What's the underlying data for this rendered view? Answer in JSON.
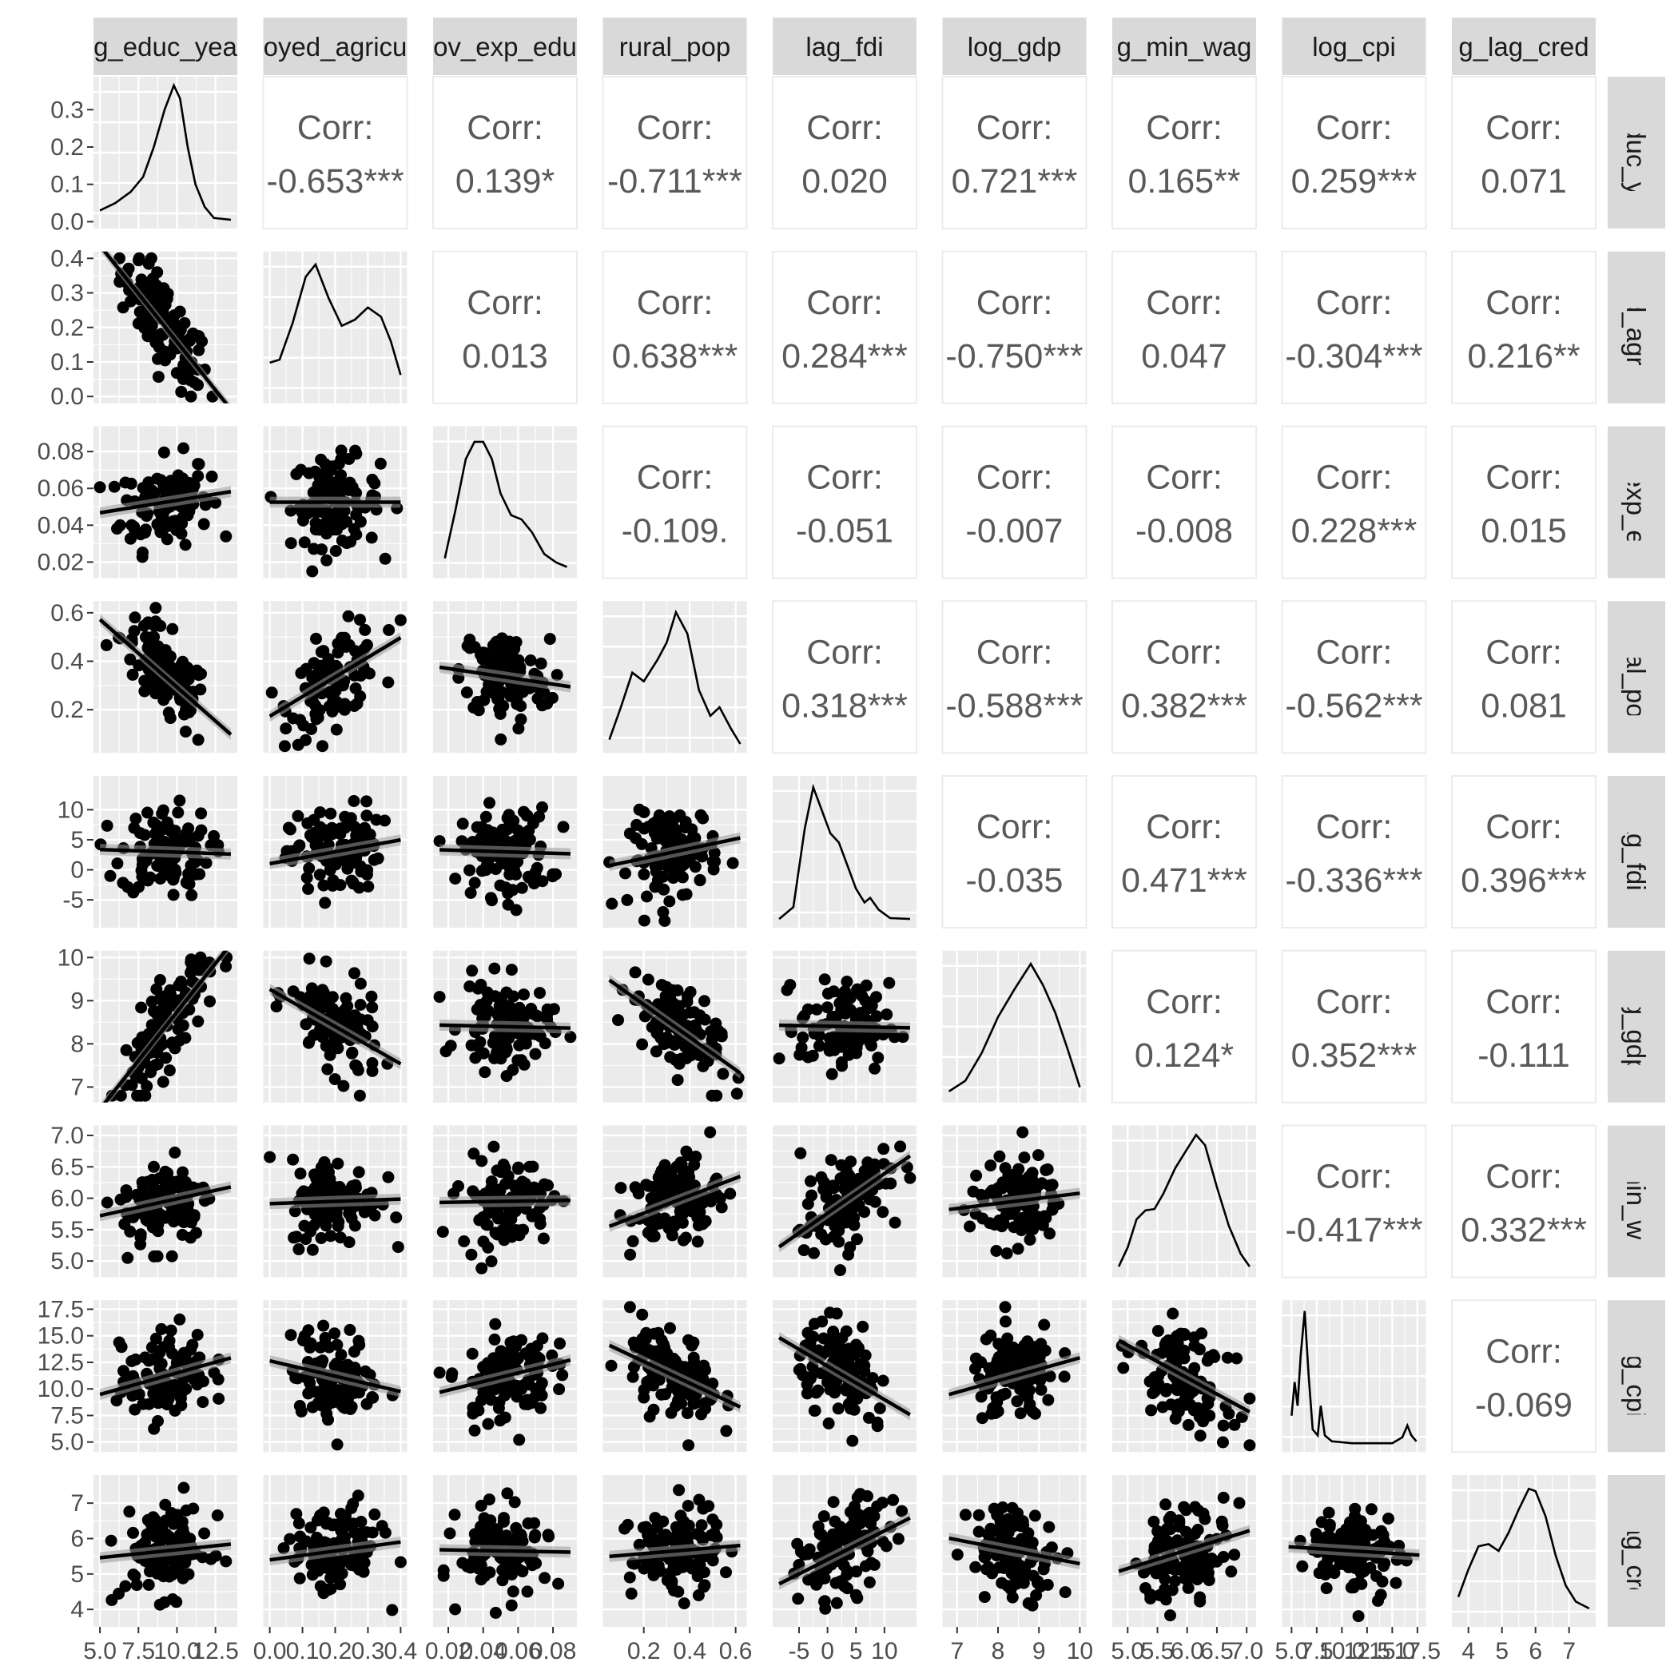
{
  "chart_data": {
    "type": "scatter-matrix",
    "variables": [
      "log_educ_years",
      "employed_agriculture",
      "gov_exp_education",
      "rural_pop",
      "lag_fdi",
      "log_gdp",
      "log_min_wage",
      "log_cpi",
      "log_lag_credit"
    ],
    "strip_labels": [
      "g_educ_yea",
      "oyed_agricu",
      "ov_exp_edu",
      "rural_pop",
      "lag_fdi",
      "log_gdp",
      "g_min_wag",
      "log_cpi",
      "g_lag_cred"
    ],
    "corr_label": "Corr:",
    "correlations": [
      {
        "row": 1,
        "col": 0,
        "value": "-0.653***"
      },
      {
        "row": 2,
        "col": 0,
        "value": "0.139*"
      },
      {
        "row": 2,
        "col": 1,
        "value": "0.013"
      },
      {
        "row": 3,
        "col": 0,
        "value": "-0.711***"
      },
      {
        "row": 3,
        "col": 1,
        "value": "0.638***"
      },
      {
        "row": 3,
        "col": 2,
        "value": "-0.109."
      },
      {
        "row": 4,
        "col": 0,
        "value": "0.020"
      },
      {
        "row": 4,
        "col": 1,
        "value": "0.284***"
      },
      {
        "row": 4,
        "col": 2,
        "value": "-0.051"
      },
      {
        "row": 4,
        "col": 3,
        "value": "0.318***"
      },
      {
        "row": 5,
        "col": 0,
        "value": "0.721***"
      },
      {
        "row": 5,
        "col": 1,
        "value": "-0.750***"
      },
      {
        "row": 5,
        "col": 2,
        "value": "-0.007"
      },
      {
        "row": 5,
        "col": 3,
        "value": "-0.588***"
      },
      {
        "row": 5,
        "col": 4,
        "value": "-0.035"
      },
      {
        "row": 6,
        "col": 0,
        "value": "0.165**"
      },
      {
        "row": 6,
        "col": 1,
        "value": "0.047"
      },
      {
        "row": 6,
        "col": 2,
        "value": "-0.008"
      },
      {
        "row": 6,
        "col": 3,
        "value": "0.382***"
      },
      {
        "row": 6,
        "col": 4,
        "value": "0.471***"
      },
      {
        "row": 6,
        "col": 5,
        "value": "0.124*"
      },
      {
        "row": 7,
        "col": 0,
        "value": "0.259***"
      },
      {
        "row": 7,
        "col": 1,
        "value": "-0.304***"
      },
      {
        "row": 7,
        "col": 2,
        "value": "0.228***"
      },
      {
        "row": 7,
        "col": 3,
        "value": "-0.562***"
      },
      {
        "row": 7,
        "col": 4,
        "value": "-0.336***"
      },
      {
        "row": 7,
        "col": 5,
        "value": "0.352***"
      },
      {
        "row": 7,
        "col": 6,
        "value": "-0.417***"
      },
      {
        "row": 8,
        "col": 0,
        "value": "0.071"
      },
      {
        "row": 8,
        "col": 1,
        "value": "0.216**"
      },
      {
        "row": 8,
        "col": 2,
        "value": "0.015"
      },
      {
        "row": 8,
        "col": 3,
        "value": "0.081"
      },
      {
        "row": 8,
        "col": 4,
        "value": "0.396***"
      },
      {
        "row": 8,
        "col": 5,
        "value": "-0.111"
      },
      {
        "row": 8,
        "col": 6,
        "value": "0.332***"
      },
      {
        "row": 8,
        "col": 7,
        "value": "-0.069"
      }
    ],
    "axes": [
      {
        "range": [
          5.0,
          13.5
        ],
        "ticks": [
          5.0,
          7.5,
          10.0,
          12.5
        ],
        "tick_labels": [
          "5.0",
          "7.5",
          "10.0",
          "12.5"
        ],
        "y_ticks": [
          0.0,
          0.1,
          0.2,
          0.3
        ],
        "y_tick_labels": [
          "0.0",
          "0.1",
          "0.2",
          "0.3"
        ],
        "density": {
          "ylim": [
            0,
            0.37
          ],
          "points": [
            [
              5.0,
              0.03
            ],
            [
              6.0,
              0.05
            ],
            [
              7.0,
              0.08
            ],
            [
              7.8,
              0.12
            ],
            [
              8.5,
              0.2
            ],
            [
              9.2,
              0.3
            ],
            [
              9.8,
              0.365
            ],
            [
              10.2,
              0.33
            ],
            [
              10.7,
              0.2
            ],
            [
              11.2,
              0.1
            ],
            [
              11.8,
              0.04
            ],
            [
              12.4,
              0.01
            ],
            [
              13.5,
              0.005
            ]
          ]
        }
      },
      {
        "range": [
          0.0,
          0.4
        ],
        "ticks": [
          0.0,
          0.1,
          0.2,
          0.3,
          0.4
        ],
        "tick_labels": [
          "0.0",
          "0.1",
          "0.2",
          "0.3",
          "0.4"
        ],
        "y_ticks": [
          0.0,
          0.1,
          0.2,
          0.3,
          0.4
        ],
        "y_tick_labels": [
          "0.0",
          "0.1",
          "0.2",
          "0.3",
          "0.4"
        ],
        "density": {
          "ylim": [
            0,
            4.5
          ],
          "points": [
            [
              0.0,
              1.1
            ],
            [
              0.03,
              1.2
            ],
            [
              0.07,
              2.4
            ],
            [
              0.11,
              3.9
            ],
            [
              0.14,
              4.3
            ],
            [
              0.18,
              3.2
            ],
            [
              0.22,
              2.3
            ],
            [
              0.26,
              2.5
            ],
            [
              0.3,
              2.9
            ],
            [
              0.34,
              2.6
            ],
            [
              0.37,
              1.8
            ],
            [
              0.4,
              0.7
            ]
          ]
        }
      },
      {
        "range": [
          0.015,
          0.09
        ],
        "ticks": [
          0.02,
          0.04,
          0.06,
          0.08
        ],
        "tick_labels": [
          "0.02",
          "0.04",
          "0.06",
          "0.08"
        ],
        "y_ticks": [
          0.02,
          0.04,
          0.06,
          0.08
        ],
        "y_tick_labels": [
          "0.02",
          "0.04",
          "0.06",
          "0.08"
        ],
        "density": {
          "ylim": [
            0,
            32
          ],
          "points": [
            [
              0.018,
              3
            ],
            [
              0.024,
              14
            ],
            [
              0.03,
              26
            ],
            [
              0.035,
              30
            ],
            [
              0.04,
              30
            ],
            [
              0.045,
              26
            ],
            [
              0.05,
              18
            ],
            [
              0.056,
              13
            ],
            [
              0.062,
              12
            ],
            [
              0.068,
              9
            ],
            [
              0.075,
              4
            ],
            [
              0.082,
              2
            ],
            [
              0.088,
              1
            ]
          ]
        }
      },
      {
        "range": [
          0.05,
          0.62
        ],
        "ticks": [
          0.2,
          0.4,
          0.6
        ],
        "tick_labels": [
          "0.2",
          "0.4",
          "0.6"
        ],
        "y_ticks": [
          0.2,
          0.4,
          0.6
        ],
        "y_tick_labels": [
          "0.2",
          "0.4",
          "0.6"
        ],
        "density": {
          "ylim": [
            0,
            3.2
          ],
          "points": [
            [
              0.05,
              0.15
            ],
            [
              0.1,
              0.9
            ],
            [
              0.15,
              1.7
            ],
            [
              0.2,
              1.5
            ],
            [
              0.26,
              2.0
            ],
            [
              0.3,
              2.4
            ],
            [
              0.34,
              3.1
            ],
            [
              0.39,
              2.6
            ],
            [
              0.44,
              1.3
            ],
            [
              0.49,
              0.7
            ],
            [
              0.53,
              0.9
            ],
            [
              0.58,
              0.4
            ],
            [
              0.62,
              0.05
            ]
          ]
        }
      },
      {
        "range": [
          -8.5,
          14.5
        ],
        "ticks": [
          -5,
          0,
          5,
          10
        ],
        "tick_labels": [
          "-5",
          "0",
          "5",
          "10"
        ],
        "y_ticks": [
          -5,
          0,
          5,
          10
        ],
        "y_tick_labels": [
          "-5",
          "0",
          "5",
          "10"
        ],
        "density": {
          "ylim": [
            0,
            0.15
          ],
          "points": [
            [
              -8.5,
              0.002
            ],
            [
              -6,
              0.015
            ],
            [
              -4,
              0.1
            ],
            [
              -2.5,
              0.145
            ],
            [
              -1,
              0.12
            ],
            [
              0.5,
              0.095
            ],
            [
              2,
              0.085
            ],
            [
              3.5,
              0.06
            ],
            [
              5,
              0.035
            ],
            [
              6.5,
              0.02
            ],
            [
              7.5,
              0.025
            ],
            [
              9,
              0.012
            ],
            [
              11,
              0.003
            ],
            [
              14.5,
              0.002
            ]
          ]
        }
      },
      {
        "range": [
          6.8,
          10.0
        ],
        "ticks": [
          7,
          8,
          9,
          10
        ],
        "tick_labels": [
          "7",
          "8",
          "9",
          "10"
        ],
        "y_ticks": [
          7,
          8,
          9,
          10
        ],
        "y_tick_labels": [
          "7",
          "8",
          "9",
          "10"
        ],
        "density": {
          "ylim": [
            0,
            0.65
          ],
          "points": [
            [
              6.8,
              0.02
            ],
            [
              7.2,
              0.07
            ],
            [
              7.6,
              0.2
            ],
            [
              8.0,
              0.37
            ],
            [
              8.4,
              0.5
            ],
            [
              8.8,
              0.62
            ],
            [
              9.1,
              0.52
            ],
            [
              9.4,
              0.39
            ],
            [
              9.7,
              0.22
            ],
            [
              10.0,
              0.04
            ]
          ]
        }
      },
      {
        "range": [
          4.85,
          7.05
        ],
        "ticks": [
          5.0,
          5.5,
          6.0,
          6.5,
          7.0
        ],
        "tick_labels": [
          "5.0",
          "5.5",
          "6.0",
          "6.5",
          "7.0"
        ],
        "y_ticks": [
          5.0,
          5.5,
          6.0,
          6.5,
          7.0
        ],
        "y_tick_labels": [
          "5.0",
          "5.5",
          "6.0",
          "6.5",
          "7.0"
        ],
        "density": {
          "ylim": [
            0,
            1.08
          ],
          "points": [
            [
              4.85,
              0.03
            ],
            [
              5.0,
              0.18
            ],
            [
              5.15,
              0.4
            ],
            [
              5.3,
              0.47
            ],
            [
              5.45,
              0.48
            ],
            [
              5.6,
              0.6
            ],
            [
              5.8,
              0.8
            ],
            [
              6.0,
              0.95
            ],
            [
              6.15,
              1.06
            ],
            [
              6.3,
              0.98
            ],
            [
              6.5,
              0.65
            ],
            [
              6.7,
              0.35
            ],
            [
              6.9,
              0.13
            ],
            [
              7.05,
              0.03
            ]
          ]
        }
      },
      {
        "range": [
          4.7,
          17.7
        ],
        "ticks": [
          5.0,
          7.5,
          10.0,
          12.5,
          15.0,
          17.5
        ],
        "tick_labels": [
          "5.0",
          "7.5",
          "10.0",
          "12.5",
          "15.0",
          "17.5"
        ],
        "y_ticks": [
          5.0,
          7.5,
          10.0,
          12.5,
          15.0,
          17.5
        ],
        "y_tick_labels": [
          "5.0",
          "7.5",
          "10.0",
          "12.5",
          "15.0",
          "17.5"
        ],
        "density": {
          "ylim": [
            0,
            0.7
          ],
          "points": [
            [
              5.0,
              0.15
            ],
            [
              5.3,
              0.32
            ],
            [
              5.6,
              0.2
            ],
            [
              5.9,
              0.45
            ],
            [
              6.3,
              0.68
            ],
            [
              6.7,
              0.35
            ],
            [
              7.1,
              0.08
            ],
            [
              7.6,
              0.05
            ],
            [
              7.9,
              0.2
            ],
            [
              8.3,
              0.05
            ],
            [
              9.0,
              0.02
            ],
            [
              11,
              0.01
            ],
            [
              15,
              0.01
            ],
            [
              16,
              0.04
            ],
            [
              16.5,
              0.1
            ],
            [
              16.9,
              0.05
            ],
            [
              17.4,
              0.02
            ]
          ]
        }
      },
      {
        "range": [
          3.7,
          7.6
        ],
        "ticks": [
          4,
          5,
          6,
          7
        ],
        "tick_labels": [
          "4",
          "5",
          "6",
          "7"
        ],
        "y_ticks": [
          4,
          5,
          6,
          7
        ],
        "y_tick_labels": [
          "4",
          "5",
          "6",
          "7"
        ],
        "density": {
          "ylim": [
            0,
            0.6
          ],
          "points": [
            [
              3.7,
              0.1
            ],
            [
              4.0,
              0.22
            ],
            [
              4.3,
              0.32
            ],
            [
              4.6,
              0.33
            ],
            [
              4.9,
              0.3
            ],
            [
              5.2,
              0.38
            ],
            [
              5.5,
              0.48
            ],
            [
              5.8,
              0.57
            ],
            [
              6.0,
              0.56
            ],
            [
              6.3,
              0.45
            ],
            [
              6.6,
              0.28
            ],
            [
              6.9,
              0.15
            ],
            [
              7.2,
              0.08
            ],
            [
              7.6,
              0.05
            ]
          ]
        }
      }
    ],
    "pair_trends": [
      {
        "row": 1,
        "col": 0,
        "slope": -0.062,
        "n": 0
      },
      {
        "row": 2,
        "col": 0,
        "slope": 0.0015
      },
      {
        "row": 2,
        "col": 1,
        "slope": 0.0
      },
      {
        "row": 3,
        "col": 0,
        "slope": -0.062
      },
      {
        "row": 3,
        "col": 1,
        "slope": 0.9
      },
      {
        "row": 3,
        "col": 2,
        "slope": -1.2
      },
      {
        "row": 4,
        "col": 0,
        "slope": -0.1
      },
      {
        "row": 4,
        "col": 1,
        "slope": 11
      },
      {
        "row": 4,
        "col": 2,
        "slope": -10
      },
      {
        "row": 4,
        "col": 3,
        "slope": 9
      },
      {
        "row": 5,
        "col": 0,
        "slope": 0.5
      },
      {
        "row": 5,
        "col": 1,
        "slope": -4.8
      },
      {
        "row": 5,
        "col": 2,
        "slope": -1
      },
      {
        "row": 5,
        "col": 3,
        "slope": -4.2
      },
      {
        "row": 5,
        "col": 4,
        "slope": -0.003
      },
      {
        "row": 6,
        "col": 0,
        "slope": 0.06
      },
      {
        "row": 6,
        "col": 1,
        "slope": 0.2
      },
      {
        "row": 6,
        "col": 2,
        "slope": 0.5
      },
      {
        "row": 6,
        "col": 3,
        "slope": 1.55
      },
      {
        "row": 6,
        "col": 4,
        "slope": 0.07
      },
      {
        "row": 6,
        "col": 5,
        "slope": 0.09
      },
      {
        "row": 7,
        "col": 0,
        "slope": 0.45
      },
      {
        "row": 7,
        "col": 1,
        "slope": -8
      },
      {
        "row": 7,
        "col": 2,
        "slope": 45
      },
      {
        "row": 7,
        "col": 3,
        "slope": -11.3
      },
      {
        "row": 7,
        "col": 4,
        "slope": -0.35
      },
      {
        "row": 7,
        "col": 5,
        "slope": 1.2
      },
      {
        "row": 7,
        "col": 6,
        "slope": -3.4
      },
      {
        "row": 8,
        "col": 0,
        "slope": 0.05
      },
      {
        "row": 8,
        "col": 1,
        "slope": 1.4
      },
      {
        "row": 8,
        "col": 2,
        "slope": -1
      },
      {
        "row": 8,
        "col": 3,
        "slope": 0.6
      },
      {
        "row": 8,
        "col": 4,
        "slope": 0.09
      },
      {
        "row": 8,
        "col": 5,
        "slope": -0.25
      },
      {
        "row": 8,
        "col": 6,
        "slope": 0.58
      },
      {
        "row": 8,
        "col": 7,
        "slope": -0.02
      }
    ]
  }
}
